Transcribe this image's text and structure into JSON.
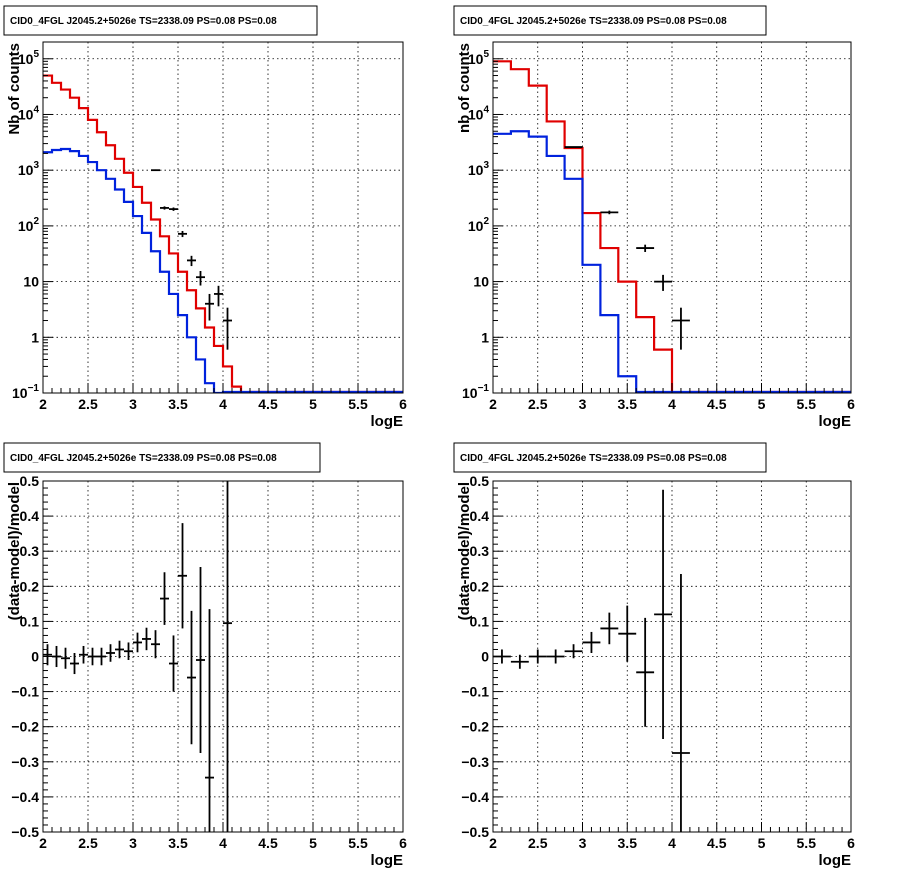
{
  "colors": {
    "data": "#000000",
    "total_model": "#e00000",
    "background_model": "#0022dd",
    "grid": "#000000",
    "frame": "#000000"
  },
  "chart_data": [
    {
      "type": "line",
      "title": "CID0_4FGL J2045.2+5026e TS=2338.09 PS=0.08 PS=0.08",
      "xlabel": "logE",
      "ylabel": "Nb of counts",
      "xlim": [
        2,
        6
      ],
      "ylim": [
        0.1,
        200000
      ],
      "yscale": "log",
      "grid": true,
      "xticks": [
        "2",
        "2.5",
        "3",
        "3.5",
        "4",
        "4.5",
        "5",
        "5.5",
        "6"
      ],
      "yticks": [
        {
          "value": 0.1,
          "label": "10",
          "exp": "−1"
        },
        {
          "value": 1,
          "label": "1",
          "exp": ""
        },
        {
          "value": 10,
          "label": "10",
          "exp": ""
        },
        {
          "value": 100,
          "label": "10",
          "exp": "2"
        },
        {
          "value": 1000,
          "label": "10",
          "exp": "3"
        },
        {
          "value": 10000,
          "label": "10",
          "exp": "4"
        },
        {
          "value": 100000,
          "label": "10",
          "exp": "5"
        }
      ],
      "series": [
        {
          "role": "total_model",
          "style": "step",
          "x_start": 2.0,
          "bin_width": 0.1,
          "values": [
            50000,
            37000,
            28000,
            20000,
            13000,
            8000,
            4800,
            2800,
            1600,
            900,
            500,
            260,
            130,
            65,
            32,
            15,
            7,
            3.3,
            1.5,
            0.7,
            0.3,
            0.13,
            0.06
          ]
        },
        {
          "role": "background_model",
          "style": "step",
          "x_start": 2.0,
          "bin_width": 0.1,
          "values": [
            2100,
            2300,
            2400,
            2200,
            1800,
            1400,
            1000,
            700,
            450,
            270,
            150,
            75,
            35,
            15,
            6,
            2.5,
            1.0,
            0.4,
            0.15,
            0.06
          ]
        },
        {
          "role": "data",
          "style": "errorbar",
          "x_half_width": 0.05,
          "points": [
            {
              "x": 3.25,
              "y": 1000,
              "err": 30
            },
            {
              "x": 3.35,
              "y": 210,
              "err": 14
            },
            {
              "x": 3.45,
              "y": 200,
              "err": 14
            },
            {
              "x": 3.55,
              "y": 72,
              "err": 9
            },
            {
              "x": 3.65,
              "y": 24,
              "err": 5
            },
            {
              "x": 3.75,
              "y": 12,
              "err": 3.5
            },
            {
              "x": 3.85,
              "y": 4.0,
              "err": 2
            },
            {
              "x": 3.95,
              "y": 6.0,
              "err": 2.4
            },
            {
              "x": 4.05,
              "y": 2.0,
              "err": 1.4
            }
          ]
        }
      ]
    },
    {
      "type": "line",
      "title": "CID0_4FGL J2045.2+5026e TS=2338.09 PS=0.08 PS=0.08",
      "xlabel": "logE",
      "ylabel": "nb of counts",
      "xlim": [
        2,
        6
      ],
      "ylim": [
        0.1,
        200000
      ],
      "yscale": "log",
      "grid": true,
      "xticks": [
        "2",
        "2.5",
        "3",
        "3.5",
        "4",
        "4.5",
        "5",
        "5.5",
        "6"
      ],
      "yticks": [
        {
          "value": 0.1,
          "label": "10",
          "exp": "−1"
        },
        {
          "value": 1,
          "label": "1",
          "exp": ""
        },
        {
          "value": 10,
          "label": "10",
          "exp": ""
        },
        {
          "value": 100,
          "label": "10",
          "exp": "2"
        },
        {
          "value": 1000,
          "label": "10",
          "exp": "3"
        },
        {
          "value": 10000,
          "label": "10",
          "exp": "4"
        },
        {
          "value": 100000,
          "label": "10",
          "exp": "5"
        }
      ],
      "series": [
        {
          "role": "total_model",
          "style": "step",
          "x_start": 2.0,
          "bin_width": 0.2,
          "values": [
            90000,
            65000,
            33000,
            7500,
            2500,
            170,
            40,
            10,
            2.3,
            0.6,
            0.1
          ]
        },
        {
          "role": "background_model",
          "style": "step",
          "x_start": 2.0,
          "bin_width": 0.2,
          "values": [
            4500,
            5000,
            4000,
            1800,
            700,
            20,
            2.5,
            0.2
          ]
        },
        {
          "role": "data",
          "style": "errorbar",
          "x_half_width": 0.1,
          "points": [
            {
              "x": 2.9,
              "y": 2600,
              "err": 51
            },
            {
              "x": 3.3,
              "y": 175,
              "err": 13
            },
            {
              "x": 3.7,
              "y": 40,
              "err": 6
            },
            {
              "x": 3.9,
              "y": 10,
              "err": 3.2
            },
            {
              "x": 4.1,
              "y": 2.0,
              "err": 1.4
            }
          ]
        }
      ]
    },
    {
      "type": "scatter",
      "title": "CID0_4FGL J2045.2+5026e TS=2338.09 PS=0.08 PS=0.08",
      "xlabel": "logE",
      "ylabel": "(data-model)/model",
      "xlim": [
        2,
        6
      ],
      "ylim": [
        -0.5,
        0.5
      ],
      "grid": true,
      "xticks": [
        "2",
        "2.5",
        "3",
        "3.5",
        "4",
        "4.5",
        "5",
        "5.5",
        "6"
      ],
      "yticks": [
        "−0.5",
        "−0.4",
        "−0.3",
        "−0.2",
        "−0.1",
        "0",
        "0.1",
        "0.2",
        "0.3",
        "0.4",
        "0.5"
      ],
      "series": [
        {
          "role": "data",
          "style": "errorbar",
          "x_half_width": 0.05,
          "points": [
            {
              "x": 2.05,
              "y": 0.005,
              "err": 0.03
            },
            {
              "x": 2.15,
              "y": 0.0,
              "err": 0.03
            },
            {
              "x": 2.25,
              "y": -0.005,
              "err": 0.03
            },
            {
              "x": 2.35,
              "y": -0.02,
              "err": 0.03
            },
            {
              "x": 2.45,
              "y": 0.005,
              "err": 0.025
            },
            {
              "x": 2.55,
              "y": 0.0,
              "err": 0.025
            },
            {
              "x": 2.65,
              "y": 0.0,
              "err": 0.025
            },
            {
              "x": 2.75,
              "y": 0.01,
              "err": 0.025
            },
            {
              "x": 2.85,
              "y": 0.02,
              "err": 0.025
            },
            {
              "x": 2.95,
              "y": 0.015,
              "err": 0.025
            },
            {
              "x": 3.05,
              "y": 0.04,
              "err": 0.028
            },
            {
              "x": 3.15,
              "y": 0.05,
              "err": 0.032
            },
            {
              "x": 3.25,
              "y": 0.035,
              "err": 0.04
            },
            {
              "x": 3.35,
              "y": 0.165,
              "err": 0.075
            },
            {
              "x": 3.45,
              "y": -0.02,
              "err": 0.08
            },
            {
              "x": 3.55,
              "y": 0.23,
              "err": 0.15
            },
            {
              "x": 3.65,
              "y": -0.06,
              "err": 0.19
            },
            {
              "x": 3.75,
              "y": -0.01,
              "err": 0.265
            },
            {
              "x": 3.85,
              "y": -0.345,
              "err": 0.48
            },
            {
              "x": 4.05,
              "y": 0.095,
              "err": 0.7
            }
          ]
        }
      ]
    },
    {
      "type": "scatter",
      "title": "CID0_4FGL J2045.2+5026e TS=2338.09 PS=0.08 PS=0.08",
      "xlabel": "logE",
      "ylabel": "(data-model)/model",
      "xlim": [
        2,
        6
      ],
      "ylim": [
        -0.5,
        0.5
      ],
      "grid": true,
      "xticks": [
        "2",
        "2.5",
        "3",
        "3.5",
        "4",
        "4.5",
        "5",
        "5.5",
        "6"
      ],
      "yticks": [
        "−0.5",
        "−0.4",
        "−0.3",
        "−0.2",
        "−0.1",
        "0",
        "0.1",
        "0.2",
        "0.3",
        "0.4",
        "0.5"
      ],
      "series": [
        {
          "role": "data",
          "style": "errorbar",
          "x_half_width": 0.1,
          "points": [
            {
              "x": 2.1,
              "y": 0.0,
              "err": 0.02
            },
            {
              "x": 2.3,
              "y": -0.015,
              "err": 0.02
            },
            {
              "x": 2.5,
              "y": 0.0,
              "err": 0.02
            },
            {
              "x": 2.7,
              "y": 0.0,
              "err": 0.02
            },
            {
              "x": 2.9,
              "y": 0.015,
              "err": 0.02
            },
            {
              "x": 3.1,
              "y": 0.04,
              "err": 0.03
            },
            {
              "x": 3.3,
              "y": 0.08,
              "err": 0.045
            },
            {
              "x": 3.5,
              "y": 0.065,
              "err": 0.08
            },
            {
              "x": 3.7,
              "y": -0.045,
              "err": 0.155
            },
            {
              "x": 3.9,
              "y": 0.12,
              "err": 0.355
            },
            {
              "x": 4.1,
              "y": -0.275,
              "err": 0.51
            }
          ]
        }
      ]
    }
  ]
}
